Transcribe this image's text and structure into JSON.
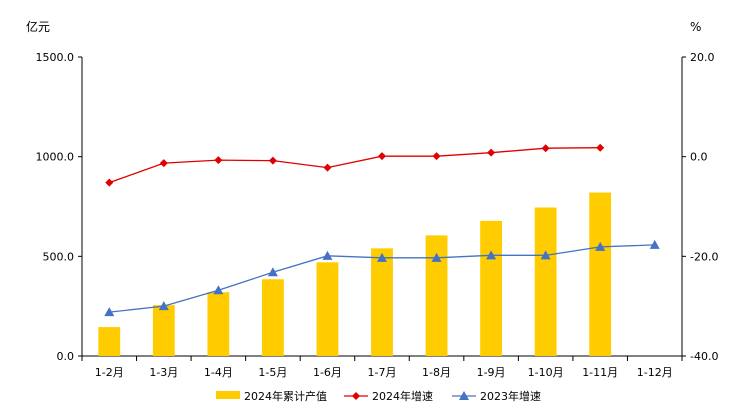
{
  "chart_data": {
    "type": "bar",
    "title": "",
    "xlabel": "",
    "left_axis": {
      "unit": "亿元",
      "ylim": [
        0,
        1500
      ],
      "ticks": [
        0,
        500,
        1000,
        1500
      ],
      "tick_labels": [
        "0.0",
        "500.0",
        "1000.0",
        "1500.0"
      ]
    },
    "right_axis": {
      "unit": "%",
      "ylim": [
        -40,
        20
      ],
      "ticks": [
        -40,
        -20,
        0,
        20
      ],
      "tick_labels": [
        "-40.0",
        "-20.0",
        "0.0",
        "20.0"
      ]
    },
    "categories": [
      "1-2月",
      "1-3月",
      "1-4月",
      "1-5月",
      "1-6月",
      "1-7月",
      "1-8月",
      "1-9月",
      "1-10月",
      "1-11月",
      "1-12月"
    ],
    "grid": false,
    "legend_position": "bottom",
    "series": [
      {
        "name": "2024年累计产值",
        "type": "bar",
        "axis": "left",
        "color": "#FFCC00",
        "values": [
          145,
          255,
          320,
          385,
          470,
          540,
          605,
          678,
          745,
          820,
          null
        ]
      },
      {
        "name": "2024年增速",
        "type": "line",
        "axis": "right",
        "color": "#E00000",
        "marker": "diamond",
        "values": [
          -5.2,
          -1.3,
          -0.7,
          -0.8,
          -2.2,
          0.1,
          0.1,
          0.8,
          1.7,
          1.8,
          null
        ]
      },
      {
        "name": "2023年增速",
        "type": "line",
        "axis": "right",
        "color": "#4472C4",
        "marker": "triangle",
        "values": [
          -31.2,
          -30.0,
          -26.8,
          -23.2,
          -19.9,
          -20.3,
          -20.3,
          -19.8,
          -19.8,
          -18.1,
          -17.7
        ]
      }
    ]
  }
}
